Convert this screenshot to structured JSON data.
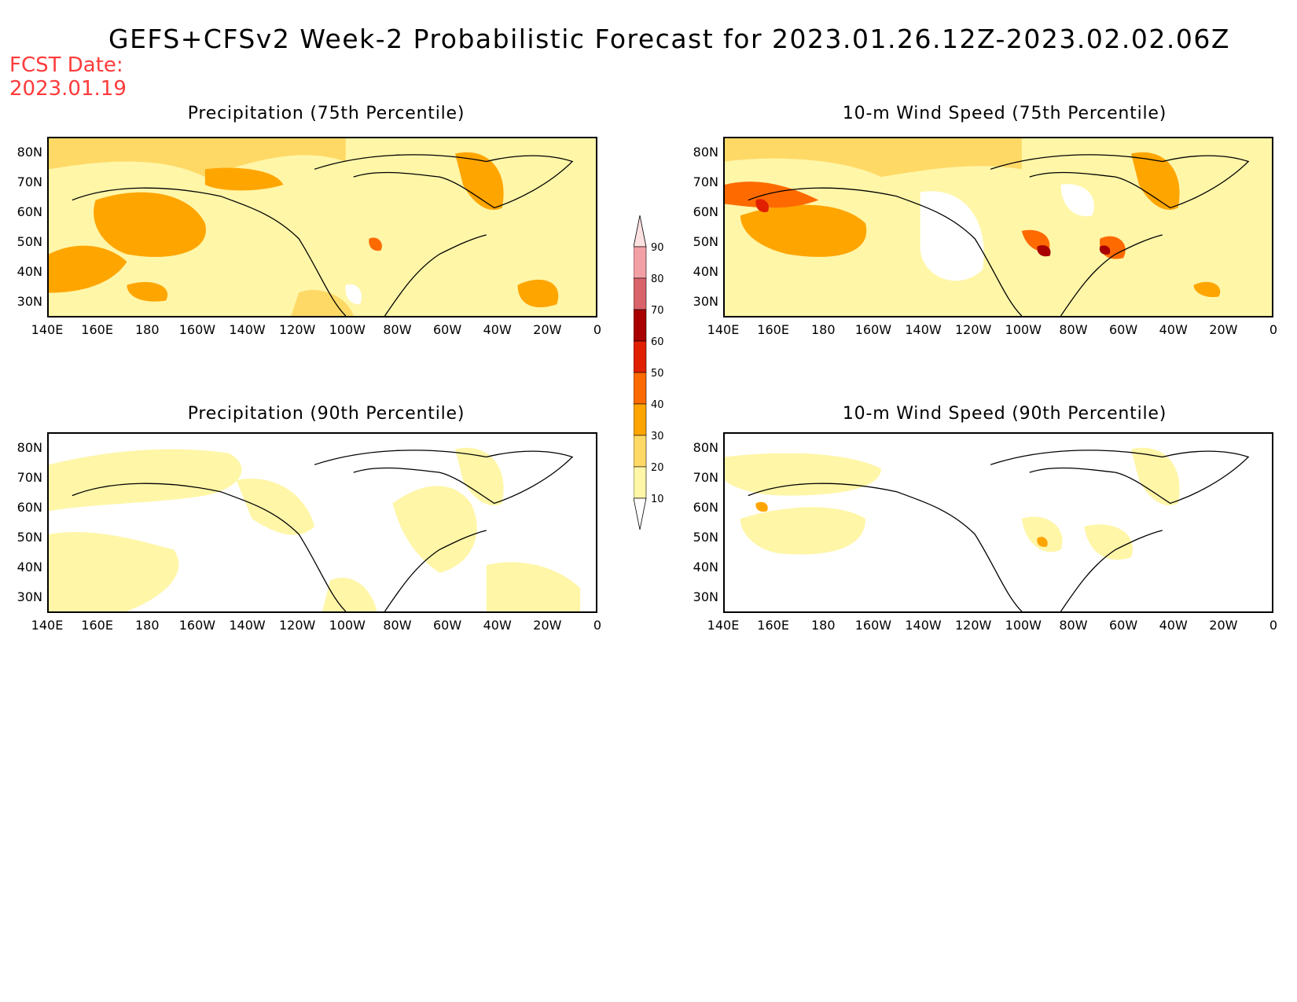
{
  "header": {
    "title": "GEFS+CFSv2 Week-2 Probabilistic Forecast for 2023.01.26.12Z-2023.02.02.06Z",
    "fcst_label": "FCST Date:",
    "fcst_date": "2023.01.19"
  },
  "panels": [
    {
      "title": "Precipitation (75th Percentile)"
    },
    {
      "title": "10-m Wind Speed (75th Percentile)"
    },
    {
      "title": "Precipitation (90th Percentile)"
    },
    {
      "title": "10-m Wind Speed (90th Percentile)"
    }
  ],
  "axes": {
    "lat_labels": [
      "80N",
      "70N",
      "60N",
      "50N",
      "40N",
      "30N"
    ],
    "lon_labels": [
      "140E",
      "160E",
      "180",
      "160W",
      "140W",
      "120W",
      "100W",
      "80W",
      "60W",
      "40W",
      "20W",
      "0"
    ]
  },
  "colorbar": {
    "levels": [
      "90",
      "80",
      "70",
      "60",
      "50",
      "40",
      "30",
      "20",
      "10"
    ],
    "colors": [
      "#fde0e0",
      "#f2a0a6",
      "#d9636a",
      "#a80000",
      "#e02000",
      "#ff6a00",
      "#ffa500",
      "#ffd966",
      "#fff6a8"
    ]
  },
  "palette": {
    "white": "#ffffff",
    "light_yellow": "#fff6a8",
    "yellow": "#ffd966",
    "orange": "#ffa500",
    "dark_orange": "#ff6a00",
    "red": "#e02000",
    "dark_red": "#a80000"
  }
}
